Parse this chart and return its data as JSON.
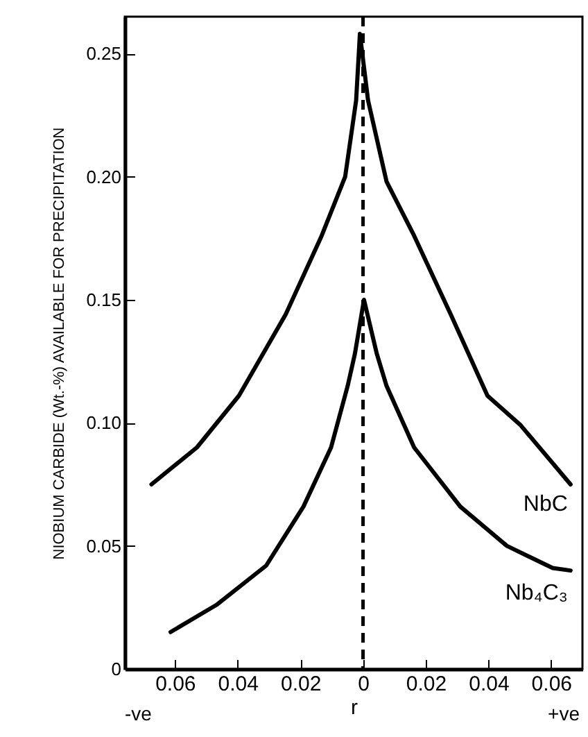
{
  "chart_data": {
    "type": "line",
    "xlabel": "r",
    "ylabel": "NIOBIUM CARBIDE (Wt.-%) AVAILABLE FOR PRECIPITATION",
    "xlim": [
      -0.076,
      0.07
    ],
    "ylim": [
      0,
      0.265
    ],
    "xticks": [
      {
        "value": -0.06,
        "label": "0.06"
      },
      {
        "value": -0.04,
        "label": "0.04"
      },
      {
        "value": -0.02,
        "label": "0.02"
      },
      0,
      0.02,
      0.04,
      0.06
    ],
    "yticks": [
      0,
      0.05,
      {
        "value": 0.1,
        "label": "0.10"
      },
      0.15,
      {
        "value": 0.2,
        "label": "0.20"
      },
      0.25
    ],
    "grid": false,
    "marker": "none",
    "line_style": "solid",
    "ref_lines": [
      {
        "axis": "x",
        "value": 0,
        "line_style": "dashed",
        "color": "#000000"
      }
    ],
    "annotations": [
      "-ve",
      "+ve"
    ],
    "series": [
      {
        "name": "NbC",
        "color": "#000000",
        "x": [
          -0.0675,
          -0.053,
          -0.0396,
          -0.0247,
          -0.0132,
          -0.0057,
          -0.0022,
          -0.001,
          0.0016,
          0.0075,
          0.0163,
          0.028,
          0.0397,
          0.0503,
          0.0662
        ],
        "values": [
          0.075,
          0.09,
          0.111,
          0.144,
          0.176,
          0.2,
          0.231,
          0.258,
          0.231,
          0.198,
          0.176,
          0.144,
          0.111,
          0.099,
          0.075
        ]
      },
      {
        "name": "Nb₄C₃",
        "color": "#000000",
        "x": [
          -0.0614,
          -0.0468,
          -0.0309,
          -0.019,
          -0.0102,
          -0.0049,
          -0.0026,
          0.0003,
          0.0044,
          0.0075,
          0.0163,
          0.031,
          0.0459,
          0.0605,
          0.0662
        ],
        "values": [
          0.015,
          0.026,
          0.042,
          0.066,
          0.09,
          0.115,
          0.128,
          0.15,
          0.128,
          0.115,
          0.09,
          0.066,
          0.05,
          0.041,
          0.04
        ]
      }
    ]
  }
}
